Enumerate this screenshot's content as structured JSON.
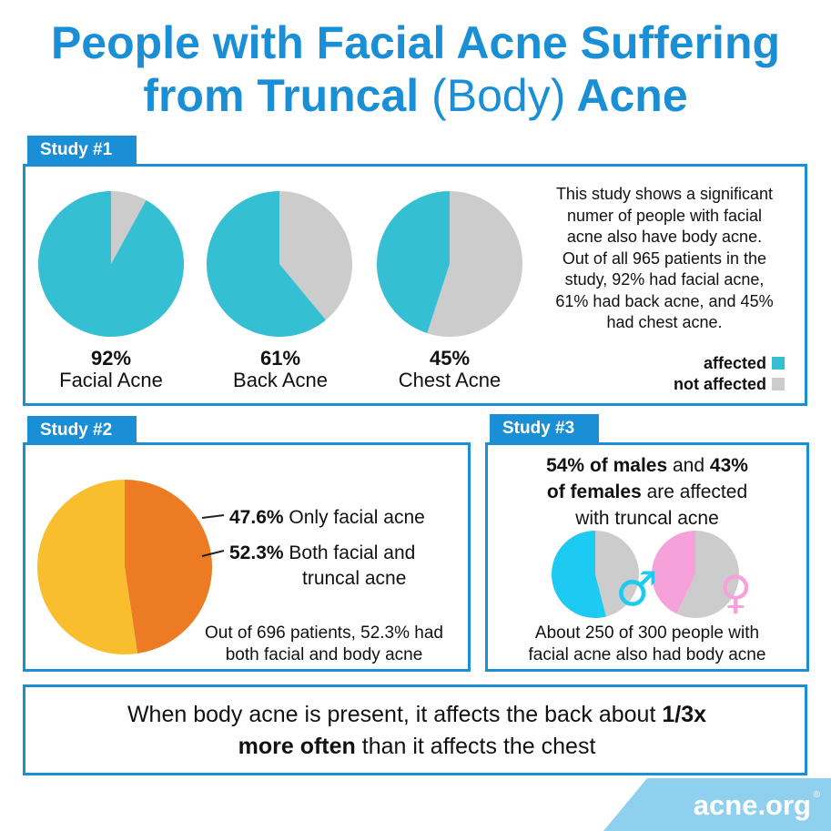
{
  "title": {
    "line1": "People with Facial Acne Suffering",
    "line2_bold": "from Truncal",
    "line2_light": "(Body)",
    "line2_end": "Acne"
  },
  "colors": {
    "accent_blue": "#1a8fd6",
    "affected": "#35bfd3",
    "not_affected": "#cccccc",
    "orange": "#ec7b24",
    "yellow": "#f9be2e",
    "male": "#1dcaf2",
    "female": "#f7a1da"
  },
  "study1": {
    "tab": "Study #1",
    "description": [
      "This study shows a significant",
      "numer of people with facial",
      "acne also have body acne.",
      "Out of all 965 patients in the",
      "study, 92% had facial acne,",
      "61% had back acne, and 45%",
      "had chest acne."
    ],
    "legend": {
      "affected": "affected",
      "not_affected": "not affected"
    }
  },
  "study2": {
    "tab": "Study #2",
    "label1_pct": "47.6%",
    "label1_text": "Only facial acne",
    "label2_pct": "52.3%",
    "label2_text1": "Both facial and",
    "label2_text2": "truncal acne",
    "note1": "Out of 696 patients, 52.3% had",
    "note2": "both facial and body acne"
  },
  "study3": {
    "tab": "Study #3",
    "h_pct1": "54% of males",
    "h_and": "and",
    "h_pct2": "43%",
    "h_fem": "of females",
    "h_rest": "are affected",
    "h_line3": "with truncal acne",
    "male_symbol": "♂",
    "female_symbol": "♀",
    "note1": "About 250 of 300 people with",
    "note2": "facial acne also had body acne"
  },
  "footer": {
    "pre": "When body acne is present, it affects the back about",
    "bold1": "1/3x",
    "bold2": "more often",
    "post": "than it affects the chest"
  },
  "brand": {
    "name": "acne.org",
    "reg": "®"
  },
  "chart_data": [
    {
      "type": "pie",
      "series": [
        {
          "name": "Facial Acne",
          "values": [
            92,
            8
          ],
          "label": "92%"
        },
        {
          "name": "Back Acne",
          "values": [
            61,
            39
          ],
          "label": "61%"
        },
        {
          "name": "Chest Acne",
          "values": [
            45,
            55
          ],
          "label": "45%"
        }
      ],
      "categories": [
        "affected",
        "not affected"
      ],
      "legend": "bottom-right"
    },
    {
      "type": "pie",
      "categories": [
        "Only facial acne",
        "Both facial and truncal acne"
      ],
      "values": [
        47.6,
        52.3
      ]
    },
    {
      "type": "pie",
      "series": [
        {
          "name": "males",
          "values": [
            54,
            46
          ]
        },
        {
          "name": "females",
          "values": [
            43,
            57
          ]
        }
      ],
      "categories": [
        "affected",
        "not affected"
      ]
    }
  ]
}
